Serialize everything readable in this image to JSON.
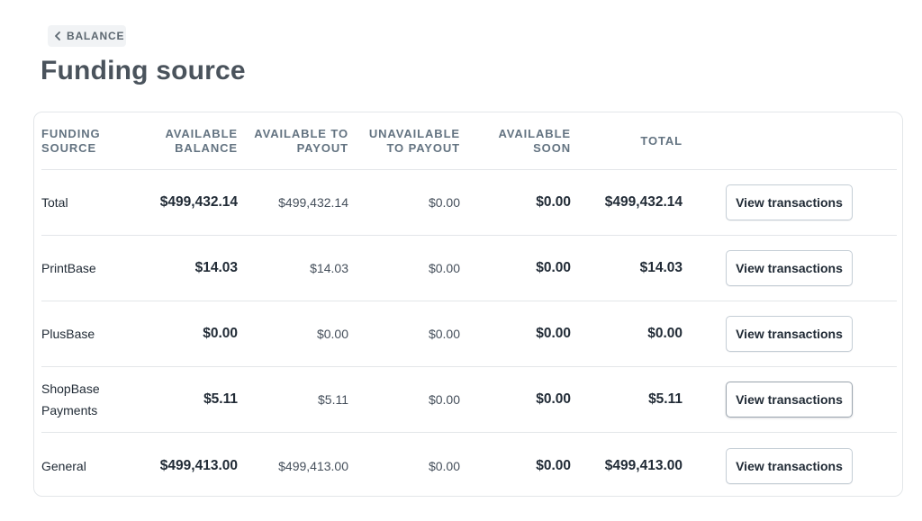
{
  "back": {
    "label": "BALANCE"
  },
  "title": "Funding source",
  "table": {
    "headers": {
      "funding_source": "FUNDING SOURCE",
      "available_balance": "AVAILABLE BALANCE",
      "available_to_payout": "AVAILABLE TO PAYOUT",
      "unavailable_to_payout": "UNAVAILABLE TO PAYOUT",
      "available_soon": "AVAILABLE SOON",
      "total": "TOTAL"
    },
    "rows": [
      {
        "name": "Total",
        "available_balance": "$499,432.14",
        "available_to_payout": "$499,432.14",
        "unavailable_to_payout": "$0.00",
        "available_soon": "$0.00",
        "total": "$499,432.14",
        "action": "View transactions"
      },
      {
        "name": "PrintBase",
        "available_balance": "$14.03",
        "available_to_payout": "$14.03",
        "unavailable_to_payout": "$0.00",
        "available_soon": "$0.00",
        "total": "$14.03",
        "action": "View transactions"
      },
      {
        "name": "PlusBase",
        "available_balance": "$0.00",
        "available_to_payout": "$0.00",
        "unavailable_to_payout": "$0.00",
        "available_soon": "$0.00",
        "total": "$0.00",
        "action": "View transactions"
      },
      {
        "name": "ShopBase Payments",
        "available_balance": "$5.11",
        "available_to_payout": "$5.11",
        "unavailable_to_payout": "$0.00",
        "available_soon": "$0.00",
        "total": "$5.11",
        "action": "View transactions"
      },
      {
        "name": "General",
        "available_balance": "$499,413.00",
        "available_to_payout": "$499,413.00",
        "unavailable_to_payout": "$0.00",
        "available_soon": "$0.00",
        "total": "$499,413.00",
        "action": "View transactions"
      }
    ]
  },
  "icons": {
    "back": "chevron-left-icon"
  }
}
